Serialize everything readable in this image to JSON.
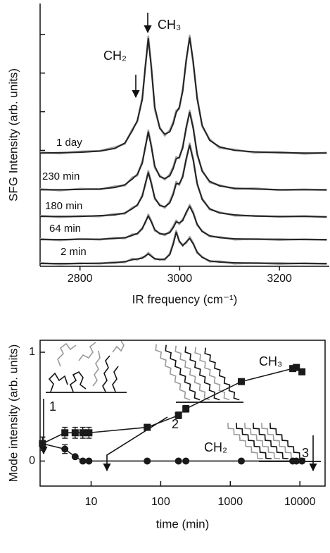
{
  "chart_data": [
    {
      "type": "line",
      "y_label": "SFG Intensity (arb. units)",
      "x_label": "IR frequency (cm⁻¹)",
      "x": [
        2720,
        2760,
        2800,
        2840,
        2870,
        2890,
        2905,
        2915,
        2925,
        2931,
        2937,
        2943,
        2950,
        2960,
        2970,
        2980,
        2987,
        2993,
        2999,
        3006,
        3013,
        3020,
        3027,
        3035,
        3045,
        3060,
        3080,
        3110,
        3150,
        3200,
        3250,
        3295
      ],
      "xlim": [
        2720,
        3300
      ],
      "xticks": [
        2800,
        3000,
        3200
      ],
      "ylim": [
        0,
        6.8
      ],
      "yticks": [
        3,
        4,
        5,
        6
      ],
      "series": [
        {
          "name": "1 day",
          "color": "#a3a3a3",
          "fit_color": "#222222",
          "values": [
            2.95,
            2.92,
            2.97,
            2.99,
            3.08,
            3.17,
            3.55,
            3.74,
            4.38,
            5.12,
            5.95,
            5.2,
            4.05,
            3.6,
            3.38,
            3.52,
            3.74,
            4.03,
            4.07,
            4.58,
            5.28,
            5.97,
            5.25,
            4.38,
            3.62,
            3.29,
            3.06,
            3.02,
            2.94,
            2.96,
            2.91,
            2.94
          ],
          "fit": [
            2.93,
            2.94,
            2.95,
            2.98,
            3.05,
            3.19,
            3.51,
            3.77,
            4.32,
            5.18,
            5.89,
            5.14,
            4.12,
            3.57,
            3.42,
            3.48,
            3.69,
            3.98,
            4.11,
            4.53,
            5.35,
            5.91,
            5.31,
            4.33,
            3.65,
            3.26,
            3.09,
            3.0,
            2.96,
            2.94,
            2.93,
            2.93
          ]
        },
        {
          "name": "230 min",
          "color": "#a3a3a3",
          "fit_color": "#222222",
          "values": [
            2.0,
            1.96,
            2.01,
            1.99,
            2.07,
            2.09,
            2.3,
            2.35,
            2.72,
            3.05,
            3.52,
            3.14,
            2.55,
            2.35,
            2.24,
            2.38,
            2.58,
            2.83,
            2.79,
            3.11,
            3.55,
            4.03,
            3.62,
            2.88,
            2.49,
            2.17,
            2.1,
            2.0,
            2.02,
            1.97,
            1.99,
            1.97
          ],
          "fit": [
            1.98,
            1.98,
            1.99,
            2.0,
            2.04,
            2.11,
            2.26,
            2.38,
            2.67,
            3.1,
            3.47,
            3.1,
            2.59,
            2.32,
            2.27,
            2.34,
            2.53,
            2.78,
            2.82,
            3.06,
            3.6,
            3.98,
            3.57,
            2.92,
            2.46,
            2.2,
            2.08,
            2.02,
            2.0,
            1.98,
            1.98,
            1.98
          ]
        },
        {
          "name": "180 min",
          "color": "#a3a3a3",
          "fit_color": "#222222",
          "values": [
            1.31,
            1.27,
            1.3,
            1.29,
            1.36,
            1.36,
            1.52,
            1.57,
            1.85,
            2.1,
            2.47,
            2.18,
            1.74,
            1.6,
            1.51,
            1.68,
            1.9,
            2.19,
            2.1,
            2.35,
            2.74,
            3.18,
            2.79,
            2.11,
            1.76,
            1.47,
            1.4,
            1.31,
            1.31,
            1.28,
            1.3,
            1.27
          ],
          "fit": [
            1.29,
            1.29,
            1.29,
            1.31,
            1.33,
            1.38,
            1.49,
            1.59,
            1.81,
            2.14,
            2.42,
            2.14,
            1.77,
            1.57,
            1.54,
            1.64,
            1.86,
            2.14,
            2.13,
            2.31,
            2.79,
            3.13,
            2.75,
            2.15,
            1.73,
            1.49,
            1.38,
            1.33,
            1.3,
            1.29,
            1.29,
            1.28
          ]
        },
        {
          "name": "64 min",
          "color": "#a3a3a3",
          "fit_color": "#222222",
          "values": [
            0.71,
            0.67,
            0.71,
            0.69,
            0.74,
            0.72,
            0.83,
            0.83,
            1.0,
            1.12,
            1.34,
            1.18,
            0.92,
            0.86,
            0.8,
            0.9,
            1.04,
            1.19,
            1.09,
            1.22,
            1.36,
            1.59,
            1.41,
            1.06,
            0.92,
            0.77,
            0.76,
            0.69,
            0.71,
            0.68,
            0.7,
            0.68
          ],
          "fit": [
            0.69,
            0.69,
            0.7,
            0.7,
            0.72,
            0.74,
            0.8,
            0.85,
            0.97,
            1.15,
            1.3,
            1.15,
            0.95,
            0.84,
            0.83,
            0.87,
            1.0,
            1.15,
            1.12,
            1.18,
            1.4,
            1.55,
            1.37,
            1.09,
            0.9,
            0.79,
            0.74,
            0.71,
            0.7,
            0.7,
            0.69,
            0.69
          ]
        },
        {
          "name": "2 min",
          "color": "#a3a3a3",
          "fit_color": "#222222",
          "values": [
            0.09,
            0.05,
            0.08,
            0.07,
            0.11,
            0.1,
            0.2,
            0.17,
            0.24,
            0.25,
            0.35,
            0.28,
            0.18,
            0.19,
            0.16,
            0.33,
            0.61,
            0.92,
            0.63,
            0.56,
            0.6,
            0.76,
            0.61,
            0.34,
            0.25,
            0.12,
            0.13,
            0.07,
            0.09,
            0.06,
            0.08,
            0.06
          ],
          "fit": [
            0.07,
            0.07,
            0.07,
            0.08,
            0.09,
            0.12,
            0.17,
            0.19,
            0.21,
            0.27,
            0.32,
            0.26,
            0.2,
            0.17,
            0.19,
            0.3,
            0.57,
            0.88,
            0.66,
            0.53,
            0.63,
            0.72,
            0.58,
            0.37,
            0.23,
            0.14,
            0.11,
            0.09,
            0.08,
            0.08,
            0.07,
            0.07
          ]
        }
      ],
      "annotations": [
        "CH₃",
        "CH₂"
      ]
    },
    {
      "type": "line",
      "y_label": "Mode intensity (arb. units)",
      "x_label": "time (min)",
      "x": [
        2,
        4.2,
        5.9,
        7.6,
        9.3,
        64,
        180,
        230,
        1440,
        7900,
        8900,
        10700
      ],
      "xlog": true,
      "xlim": [
        1.85,
        23000
      ],
      "xticks": [
        10,
        100,
        1000,
        10000
      ],
      "ylim": [
        -0.23,
        1.11
      ],
      "yticks": [
        0,
        1
      ],
      "series": [
        {
          "name": "CH₃",
          "color": "#1a1a1a",
          "marker": "square",
          "values": [
            0.16,
            0.26,
            0.26,
            0.26,
            0.26,
            0.31,
            0.42,
            0.48,
            0.73,
            0.85,
            0.86,
            0.82
          ],
          "errors": [
            0.06,
            0.05,
            0.05,
            0.05,
            0.05,
            0.02,
            0.03,
            0.03,
            null,
            null,
            null,
            null
          ]
        },
        {
          "name": "CH₂",
          "color": "#1a1a1a",
          "marker": "circle",
          "values": [
            0.16,
            0.11,
            0.04,
            0,
            0,
            0,
            0,
            0,
            0,
            0,
            0,
            0
          ],
          "errors": [
            0.06,
            0.04,
            null,
            null,
            null,
            null,
            null,
            null,
            null,
            null,
            null,
            null
          ]
        }
      ],
      "annotations": [
        "1",
        "2",
        "3"
      ]
    }
  ]
}
